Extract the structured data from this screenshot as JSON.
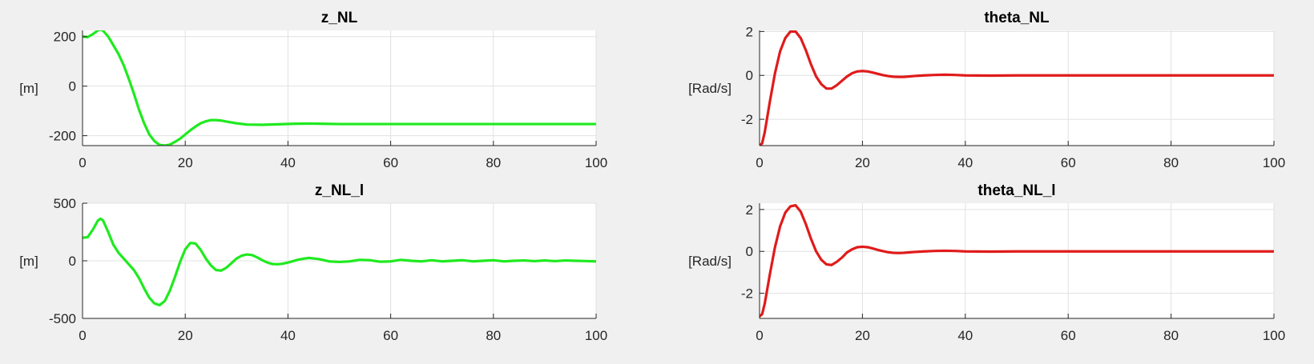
{
  "chart_data": [
    {
      "type": "line",
      "title": "z_NL",
      "xlabel": "",
      "ylabel": "[m]",
      "xlim": [
        0,
        100
      ],
      "ylim": [
        -240,
        225
      ],
      "xticks": [
        0,
        20,
        40,
        60,
        80,
        100
      ],
      "yticks": [
        -200,
        0,
        200
      ],
      "grid": true,
      "color": "#1fea1f",
      "series": [
        {
          "x": [
            0,
            1,
            2,
            3,
            3.5,
            4,
            5,
            6,
            7,
            8,
            9,
            10,
            11,
            12,
            13,
            14,
            15,
            16,
            17,
            18,
            19,
            20,
            21,
            22,
            23,
            24,
            25,
            26,
            27,
            28,
            30,
            32,
            35,
            38,
            41,
            44,
            47,
            50,
            60,
            70,
            80,
            90,
            100
          ],
          "y": [
            200,
            198,
            210,
            225,
            228,
            224,
            200,
            165,
            130,
            85,
            30,
            -30,
            -95,
            -150,
            -195,
            -222,
            -237,
            -240,
            -236,
            -225,
            -212,
            -195,
            -178,
            -163,
            -150,
            -142,
            -137,
            -137,
            -139,
            -143,
            -150,
            -155,
            -156,
            -154,
            -152,
            -151,
            -152,
            -153,
            -153,
            -153,
            -153,
            -153,
            -153
          ]
        }
      ]
    },
    {
      "type": "line",
      "title": "theta_NL",
      "xlabel": "",
      "ylabel": "[Rad/s]",
      "xlim": [
        0,
        100
      ],
      "ylim": [
        -3.2,
        2.05
      ],
      "xticks": [
        0,
        20,
        40,
        60,
        80,
        100
      ],
      "yticks": [
        -2,
        0,
        2
      ],
      "grid": true,
      "color": "#e01b1b",
      "series": [
        {
          "x": [
            0,
            0.5,
            1,
            1.5,
            2,
            3,
            4,
            5,
            6,
            7,
            8,
            9,
            10,
            11,
            12,
            13,
            14,
            15,
            16,
            17,
            18,
            19,
            20,
            21,
            22,
            23,
            24,
            25,
            26,
            27,
            28,
            29,
            30,
            32,
            34,
            36,
            38,
            40,
            45,
            50,
            60,
            70,
            80,
            90,
            100
          ],
          "y": [
            -3.2,
            -3.1,
            -2.6,
            -1.9,
            -1.2,
            0.1,
            1.1,
            1.7,
            2.0,
            2.0,
            1.7,
            1.15,
            0.5,
            -0.05,
            -0.4,
            -0.6,
            -0.6,
            -0.45,
            -0.25,
            -0.05,
            0.1,
            0.18,
            0.2,
            0.18,
            0.13,
            0.07,
            0.01,
            -0.03,
            -0.06,
            -0.07,
            -0.07,
            -0.05,
            -0.03,
            0.0,
            0.02,
            0.03,
            0.02,
            0.0,
            -0.01,
            0.0,
            0.0,
            0.0,
            0.0,
            0.0,
            0.0
          ]
        }
      ]
    },
    {
      "type": "line",
      "title": "z_NL_l",
      "xlabel": "",
      "ylabel": "[m]",
      "xlim": [
        0,
        100
      ],
      "ylim": [
        -500,
        500
      ],
      "xticks": [
        0,
        20,
        40,
        60,
        80,
        100
      ],
      "yticks": [
        -500,
        0,
        500
      ],
      "grid": true,
      "color": "#1fea1f",
      "series": [
        {
          "x": [
            0,
            1,
            2,
            3,
            3.5,
            4,
            5,
            6,
            7,
            8,
            9,
            10,
            11,
            12,
            13,
            14,
            15,
            16,
            17,
            18,
            19,
            20,
            21,
            22,
            23,
            24,
            25,
            26,
            27,
            28,
            29,
            30,
            31,
            32,
            33,
            34,
            35,
            36,
            37,
            38,
            39,
            40,
            42,
            44,
            46,
            48,
            50,
            52,
            54,
            56,
            58,
            60,
            62,
            64,
            66,
            68,
            70,
            72,
            74,
            76,
            78,
            80,
            82,
            84,
            86,
            88,
            90,
            92,
            94,
            96,
            98,
            100
          ],
          "y": [
            200,
            205,
            270,
            350,
            365,
            350,
            250,
            140,
            70,
            20,
            -30,
            -80,
            -150,
            -240,
            -320,
            -370,
            -385,
            -350,
            -260,
            -140,
            -10,
            100,
            155,
            150,
            95,
            20,
            -40,
            -80,
            -85,
            -60,
            -20,
            20,
            45,
            55,
            50,
            30,
            5,
            -15,
            -28,
            -30,
            -25,
            -15,
            10,
            25,
            15,
            -5,
            -10,
            -5,
            8,
            5,
            -8,
            -5,
            8,
            0,
            -5,
            5,
            -5,
            0,
            5,
            -5,
            0,
            5,
            -5,
            0,
            3,
            -3,
            3,
            -3,
            3,
            0,
            -2,
            -5
          ]
        }
      ]
    },
    {
      "type": "line",
      "title": "theta_NL_l",
      "xlabel": "",
      "ylabel": "[Rad/s]",
      "xlim": [
        0,
        100
      ],
      "ylim": [
        -3.2,
        2.3
      ],
      "xticks": [
        0,
        20,
        40,
        60,
        80,
        100
      ],
      "yticks": [
        -2,
        0,
        2
      ],
      "grid": true,
      "color": "#e01b1b",
      "series": [
        {
          "x": [
            0,
            0.5,
            1,
            1.5,
            2,
            3,
            4,
            5,
            6,
            7,
            8,
            9,
            10,
            11,
            12,
            13,
            14,
            15,
            16,
            17,
            18,
            19,
            20,
            21,
            22,
            23,
            24,
            25,
            26,
            27,
            28,
            29,
            30,
            32,
            34,
            36,
            38,
            40,
            45,
            50,
            60,
            70,
            80,
            90,
            100
          ],
          "y": [
            -3.1,
            -3.0,
            -2.5,
            -1.8,
            -1.1,
            0.2,
            1.2,
            1.85,
            2.15,
            2.2,
            1.9,
            1.3,
            0.6,
            0.0,
            -0.4,
            -0.62,
            -0.65,
            -0.5,
            -0.3,
            -0.05,
            0.1,
            0.2,
            0.22,
            0.2,
            0.14,
            0.07,
            0.01,
            -0.04,
            -0.07,
            -0.08,
            -0.07,
            -0.05,
            -0.03,
            0.0,
            0.02,
            0.03,
            0.02,
            0.0,
            -0.01,
            0.0,
            0.0,
            0.0,
            0.0,
            0.0,
            0.0
          ]
        }
      ]
    }
  ]
}
